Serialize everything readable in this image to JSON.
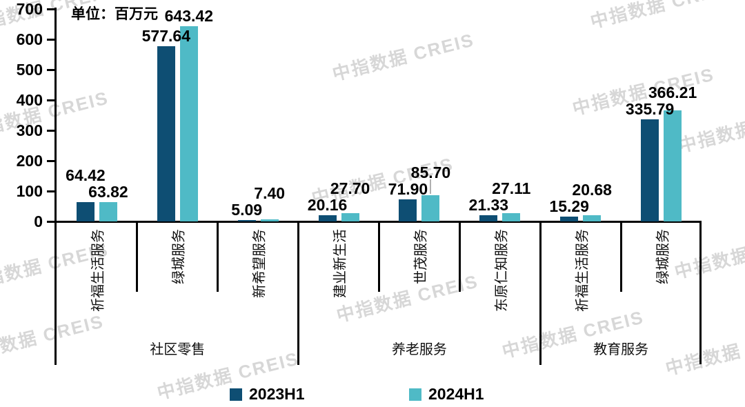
{
  "watermark_text": "中指数据 CREIS",
  "chart_data": {
    "type": "bar",
    "title": "",
    "unit_label": "单位：百万元",
    "ylim": [
      0,
      700
    ],
    "ytick_interval": 100,
    "ytick_labels": [
      "0",
      "100",
      "200",
      "300",
      "400",
      "500",
      "600",
      "700"
    ],
    "grid": false,
    "legend_position": "bottom",
    "series_names": [
      "2023H1",
      "2024H1"
    ],
    "series_colors": [
      "#0e4e73",
      "#4fbac6"
    ],
    "groups": [
      {
        "label": "社区零售",
        "companies": [
          {
            "name": "祈福生活服务",
            "values": [
              "64.42",
              "63.82"
            ]
          },
          {
            "name": "绿城服务",
            "values": [
              "577.64",
              "643.42"
            ]
          },
          {
            "name": "新希望服务",
            "values": [
              "5.09",
              "7.40"
            ]
          }
        ]
      },
      {
        "label": "养老服务",
        "companies": [
          {
            "name": "建业新生活",
            "values": [
              "20.16",
              "27.70"
            ]
          },
          {
            "name": "世茂服务",
            "values": [
              "71.90",
              "85.70"
            ],
            "leader_line_on_2024": true
          },
          {
            "name": "东原仁知服务",
            "values": [
              "21.33",
              "27.11"
            ]
          }
        ]
      },
      {
        "label": "教育服务",
        "companies": [
          {
            "name": "祈福生活服务",
            "values": [
              "15.29",
              "20.68"
            ]
          },
          {
            "name": "绿城服务",
            "values": [
              "335.79",
              "366.21"
            ]
          }
        ]
      }
    ]
  }
}
